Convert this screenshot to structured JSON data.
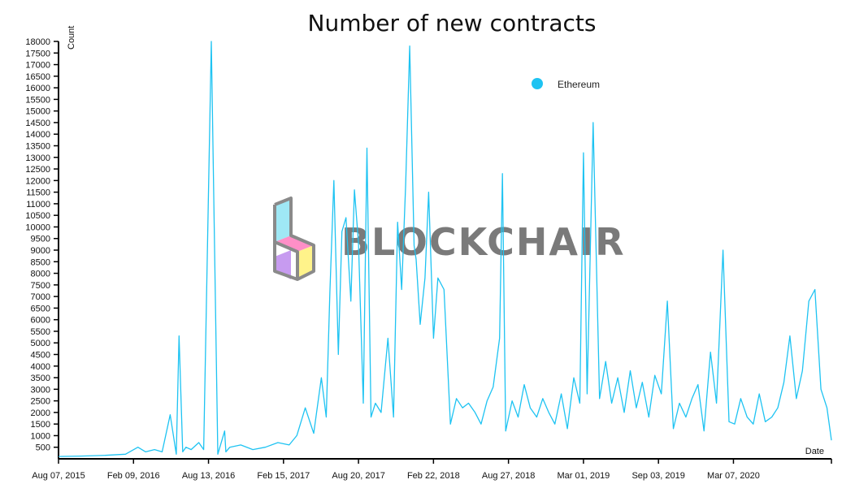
{
  "chart_data": {
    "type": "line",
    "title": "Number of new contracts",
    "xlabel": "Date",
    "ylabel": "Count",
    "ylim": [
      0,
      18000
    ],
    "yticks": [
      500,
      1000,
      1500,
      2000,
      2500,
      3000,
      3500,
      4000,
      4500,
      5000,
      5500,
      6000,
      6500,
      7000,
      7500,
      8000,
      8500,
      9000,
      9500,
      10000,
      10500,
      11000,
      11500,
      12000,
      12500,
      13000,
      13500,
      14000,
      14500,
      15000,
      15500,
      16000,
      16500,
      17000,
      17500,
      18000
    ],
    "xlim": [
      "2015-08-07",
      "2020-11-05"
    ],
    "xticks": [
      {
        "date": "2015-08-07",
        "label": "Aug 07, 2015"
      },
      {
        "date": "2016-02-09",
        "label": "Feb 09, 2016"
      },
      {
        "date": "2016-08-13",
        "label": "Aug 13, 2016"
      },
      {
        "date": "2017-02-15",
        "label": "Feb 15, 2017"
      },
      {
        "date": "2017-08-20",
        "label": "Aug 20, 2017"
      },
      {
        "date": "2018-02-22",
        "label": "Feb 22, 2018"
      },
      {
        "date": "2018-08-27",
        "label": "Aug 27, 2018"
      },
      {
        "date": "2019-03-01",
        "label": "Mar 01, 2019"
      },
      {
        "date": "2019-09-03",
        "label": "Sep 03, 2019"
      },
      {
        "date": "2020-03-07",
        "label": "Mar 07, 2020"
      }
    ],
    "legend_position": "top-center",
    "color": "#1ec3f2",
    "series": [
      {
        "name": "Ethereum",
        "x": [
          "2015-08-07",
          "2015-10-01",
          "2015-12-01",
          "2016-01-20",
          "2016-02-20",
          "2016-03-10",
          "2016-04-01",
          "2016-04-20",
          "2016-05-10",
          "2016-05-25",
          "2016-06-01",
          "2016-06-10",
          "2016-06-18",
          "2016-07-01",
          "2016-07-20",
          "2016-08-01",
          "2016-08-20",
          "2016-09-05",
          "2016-09-22",
          "2016-09-25",
          "2016-10-05",
          "2016-11-01",
          "2016-12-01",
          "2017-01-01",
          "2017-02-01",
          "2017-03-01",
          "2017-03-20",
          "2017-04-10",
          "2017-05-01",
          "2017-05-20",
          "2017-06-01",
          "2017-06-10",
          "2017-06-20",
          "2017-07-01",
          "2017-07-10",
          "2017-07-20",
          "2017-08-01",
          "2017-08-10",
          "2017-08-20",
          "2017-09-01",
          "2017-09-10",
          "2017-09-20",
          "2017-10-01",
          "2017-10-15",
          "2017-11-01",
          "2017-11-15",
          "2017-11-25",
          "2017-12-05",
          "2017-12-15",
          "2017-12-25",
          "2018-01-05",
          "2018-01-10",
          "2018-01-20",
          "2018-02-01",
          "2018-02-10",
          "2018-02-22",
          "2018-03-05",
          "2018-03-20",
          "2018-04-05",
          "2018-04-20",
          "2018-05-05",
          "2018-05-20",
          "2018-06-05",
          "2018-06-20",
          "2018-07-05",
          "2018-07-20",
          "2018-08-05",
          "2018-08-12",
          "2018-08-20",
          "2018-09-05",
          "2018-09-20",
          "2018-10-05",
          "2018-10-20",
          "2018-11-05",
          "2018-11-20",
          "2018-12-05",
          "2018-12-20",
          "2019-01-05",
          "2019-01-20",
          "2019-02-05",
          "2019-02-20",
          "2019-03-01",
          "2019-03-10",
          "2019-03-25",
          "2019-04-10",
          "2019-04-25",
          "2019-05-10",
          "2019-05-25",
          "2019-06-10",
          "2019-06-25",
          "2019-07-10",
          "2019-07-25",
          "2019-08-10",
          "2019-08-25",
          "2019-09-10",
          "2019-09-25",
          "2019-10-10",
          "2019-10-25",
          "2019-11-10",
          "2019-11-25",
          "2019-12-10",
          "2019-12-25",
          "2020-01-10",
          "2020-01-25",
          "2020-02-10",
          "2020-02-25",
          "2020-03-10",
          "2020-03-25",
          "2020-04-10",
          "2020-04-25",
          "2020-05-10",
          "2020-05-25",
          "2020-06-10",
          "2020-06-25",
          "2020-07-10",
          "2020-07-25",
          "2020-08-10",
          "2020-08-25",
          "2020-09-10",
          "2020-09-25",
          "2020-10-10",
          "2020-10-25",
          "2020-11-05"
        ],
        "values": [
          100,
          120,
          150,
          200,
          500,
          300,
          400,
          300,
          1900,
          200,
          5300,
          300,
          500,
          400,
          700,
          400,
          18000,
          200,
          1200,
          300,
          500,
          600,
          400,
          500,
          700,
          600,
          1000,
          2200,
          1100,
          3500,
          1800,
          7200,
          12000,
          4500,
          9800,
          10400,
          6800,
          11600,
          9300,
          2400,
          13400,
          1800,
          2400,
          2000,
          5200,
          1800,
          10200,
          7300,
          11800,
          17800,
          9200,
          8600,
          5800,
          7800,
          11500,
          5200,
          7800,
          7300,
          1500,
          2600,
          2200,
          2400,
          2000,
          1500,
          2500,
          3100,
          5200,
          12300,
          1200,
          2500,
          1800,
          3200,
          2200,
          1800,
          2600,
          2000,
          1500,
          2800,
          1300,
          3500,
          2400,
          13200,
          2800,
          14500,
          2600,
          4200,
          2400,
          3500,
          2000,
          3800,
          2200,
          3300,
          1800,
          3600,
          2800,
          6800,
          1300,
          2400,
          1800,
          2600,
          3200,
          1200,
          4600,
          2400,
          9000,
          1600,
          1500,
          2600,
          1800,
          1500,
          2800,
          1600,
          1800,
          2200,
          3300,
          5300,
          2600,
          3800,
          6800,
          7300,
          3000,
          2200,
          800
        ]
      }
    ]
  },
  "watermark": {
    "text": "BLOCKCHAIR"
  }
}
